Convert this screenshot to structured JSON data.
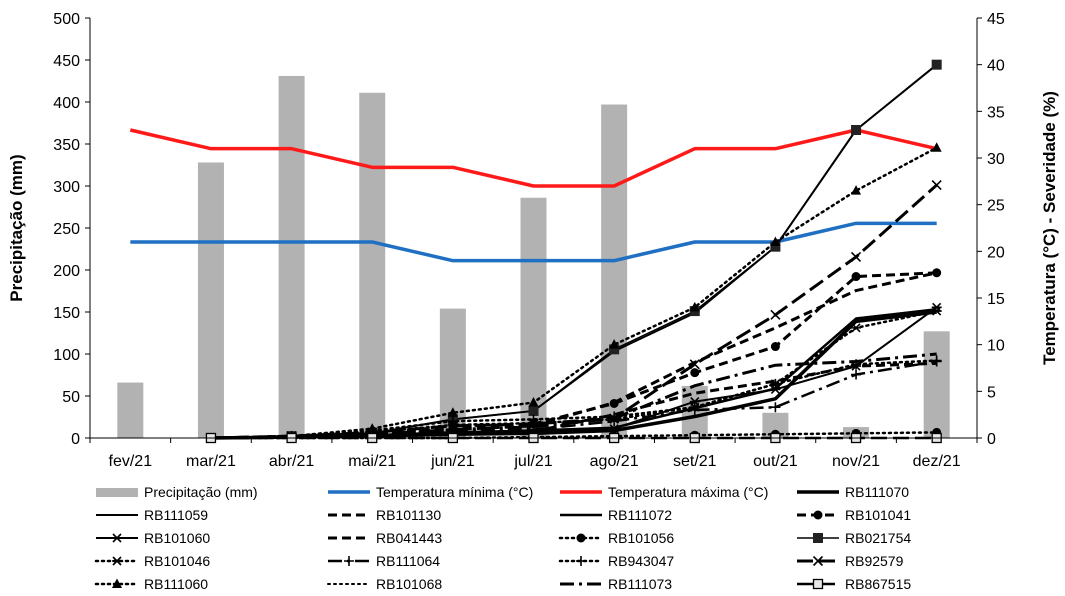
{
  "chart_data": {
    "type": "bar+line",
    "categories": [
      "fev/21",
      "mar/21",
      "abr/21",
      "mai/21",
      "jun/21",
      "jul/21",
      "ago/21",
      "set/21",
      "out/21",
      "nov/21",
      "dez/21"
    ],
    "y_left": {
      "label": "Precipitação (mm)",
      "lim": [
        0,
        500
      ],
      "ticks": [
        0,
        50,
        100,
        150,
        200,
        250,
        300,
        350,
        400,
        450,
        500
      ]
    },
    "y_right": {
      "label": "Temperatura (°C) - Severidade (%)",
      "lim": [
        0,
        45
      ],
      "ticks": [
        0,
        5,
        10,
        15,
        20,
        25,
        30,
        35,
        40,
        45
      ]
    },
    "grid": false,
    "legend_position": "bottom",
    "bars": {
      "name": "Precipitação (mm)",
      "color": "#b2b2b2",
      "values": [
        66,
        328,
        431,
        411,
        154,
        286,
        397,
        62,
        30,
        13,
        127
      ]
    },
    "temperature": [
      {
        "name": "Temperatura mínima (°C)",
        "color": "#1f6fc2",
        "values": [
          21,
          21,
          21,
          21,
          19,
          19,
          19,
          21,
          21,
          23,
          23
        ]
      },
      {
        "name": "Temperatura máxima (°C)",
        "color": "#ff1a1a",
        "values": [
          33,
          31,
          31,
          29,
          29,
          27,
          27,
          31,
          31,
          33,
          31
        ]
      }
    ],
    "severity": [
      {
        "name": "RB111070",
        "dash": "solid",
        "width": 3.5,
        "marker": "none",
        "values": [
          null,
          0,
          0.1,
          0.2,
          0.4,
          0.5,
          0.8,
          2.3,
          4.2,
          12.5,
          13.5
        ]
      },
      {
        "name": "RB111059",
        "dash": "solid",
        "width": 2,
        "marker": "none",
        "values": [
          null,
          0,
          0.2,
          0.5,
          2.0,
          2.9,
          9.3,
          13.4,
          20.5,
          33,
          40
        ]
      },
      {
        "name": "RB101130",
        "dash": "dash",
        "width": 3,
        "marker": "none",
        "values": [
          null,
          0,
          0.1,
          0.4,
          0.9,
          1.3,
          3.8,
          8.1,
          11.8,
          15.8,
          17.7
        ]
      },
      {
        "name": "RB111072",
        "dash": "solid",
        "width": 2.5,
        "marker": "none",
        "values": [
          null,
          0,
          0.1,
          0.3,
          0.6,
          0.8,
          1.1,
          3.2,
          5.3,
          12.8,
          13.8
        ]
      },
      {
        "name": "RB101041",
        "dash": "dash",
        "width": 3,
        "marker": "circle",
        "values": [
          null,
          0,
          0.2,
          0.5,
          1.2,
          1.5,
          3.7,
          7.0,
          9.8,
          17.3,
          17.7
        ]
      },
      {
        "name": "RB101060",
        "dash": "solid",
        "width": 2,
        "marker": "asterisk",
        "values": [
          null,
          0,
          0.1,
          0.2,
          0.4,
          0.6,
          1.0,
          3.9,
          5.2,
          7.7,
          14.0
        ]
      },
      {
        "name": "RB041443",
        "dash": "dash",
        "width": 3,
        "marker": "none",
        "values": [
          null,
          0,
          0.1,
          0.2,
          0.5,
          0.7,
          2.5,
          4.8,
          6.1,
          7.7,
          8.0
        ]
      },
      {
        "name": "RB101056",
        "dash": "dot",
        "width": 2.5,
        "marker": "circle",
        "values": [
          null,
          0,
          0,
          0,
          0,
          0.1,
          0.2,
          0.3,
          0.4,
          0.5,
          0.6
        ]
      },
      {
        "name": "RB021754",
        "dash": "solid",
        "width": 1.5,
        "marker": "square",
        "values": [
          null,
          0,
          0.2,
          0.5,
          2.0,
          2.9,
          9.5,
          13.6,
          20.5,
          33,
          40
        ]
      },
      {
        "name": "RB101046",
        "dash": "dot",
        "width": 2.5,
        "marker": "asterisk",
        "values": [
          null,
          0,
          0.2,
          0.6,
          1.4,
          1.6,
          2.0,
          3.3,
          5.8,
          11.8,
          13.6
        ]
      },
      {
        "name": "RB111064",
        "dash": "dashdot",
        "width": 2.5,
        "marker": "plus",
        "values": [
          null,
          0,
          0.1,
          0.3,
          0.8,
          0.9,
          1.8,
          3.0,
          3.3,
          6.8,
          8.2
        ]
      },
      {
        "name": "RB943047",
        "dash": "dot",
        "width": 2.5,
        "marker": "plus",
        "values": [
          null,
          0,
          0.2,
          0.8,
          1.8,
          2.0,
          2.3,
          3.3,
          5.8,
          7.9,
          8.3
        ]
      },
      {
        "name": "RB92579",
        "dash": "longdash",
        "width": 3,
        "marker": "cross",
        "values": [
          null,
          0,
          0.2,
          0.6,
          1.3,
          1.5,
          2.1,
          7.9,
          13.2,
          19.4,
          27.1
        ]
      },
      {
        "name": "RB111060",
        "dash": "dot",
        "width": 2.5,
        "marker": "triangle",
        "values": [
          null,
          0,
          0.2,
          1.0,
          2.7,
          3.8,
          10.0,
          14.0,
          21.0,
          26.5,
          31.1
        ]
      },
      {
        "name": "RB101068",
        "dash": "dot",
        "width": 2,
        "marker": "none",
        "values": [
          null,
          0,
          0.2,
          1.0,
          2.7,
          3.8,
          10.0,
          14.0,
          21.0,
          26.5,
          31.1
        ]
      },
      {
        "name": "RB111073",
        "dash": "dashdot",
        "width": 3,
        "marker": "none",
        "values": [
          null,
          0,
          0.1,
          0.4,
          0.9,
          1.2,
          2.1,
          5.6,
          7.8,
          8.2,
          9.0
        ]
      },
      {
        "name": "RB867515",
        "dash": "longdash",
        "width": 2.5,
        "marker": "open-square",
        "values": [
          null,
          0,
          0,
          0,
          0,
          0,
          0,
          0,
          0,
          0,
          0
        ]
      }
    ]
  }
}
